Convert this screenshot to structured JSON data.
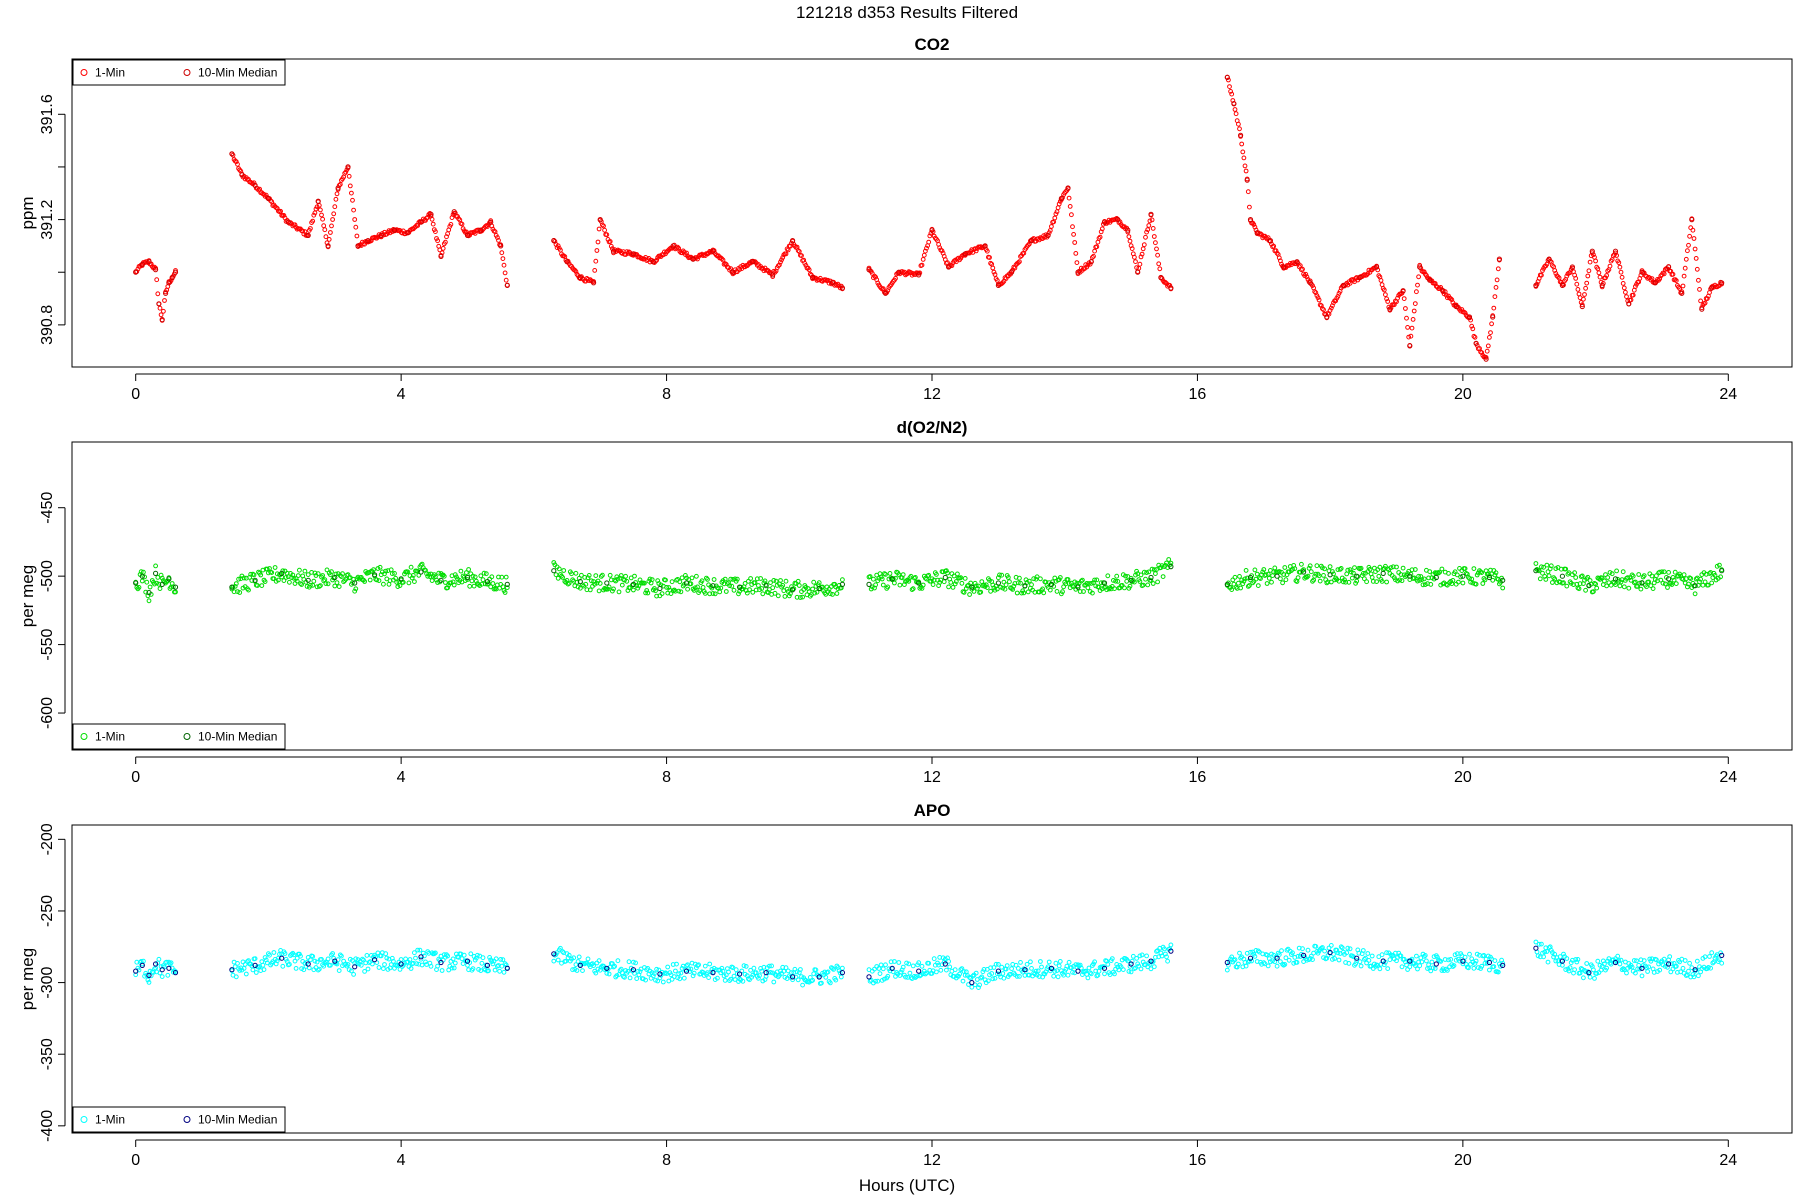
{
  "figure": {
    "title": "121218   d353   Results Filtered",
    "xlabel": "Hours (UTC)"
  },
  "chart_data": [
    {
      "type": "scatter",
      "title": "CO2",
      "xlabel": "",
      "ylabel": "ppm",
      "xlim": [
        -0.96,
        24.96
      ],
      "ylim": [
        390.64,
        391.81
      ],
      "xticks": [
        0,
        4,
        8,
        12,
        16,
        20,
        24
      ],
      "yticks": [
        390.8,
        391.0,
        391.2,
        391.4,
        391.6
      ],
      "ytick_labels": [
        "390.8",
        "",
        "391.2",
        "",
        "391.6"
      ],
      "grid": false,
      "legend_position": "top-left",
      "series": [
        {
          "name": "1-Min",
          "color": "#ff0000",
          "marker": "open-circle"
        },
        {
          "name": "10-Min Median",
          "color": "#cc0000",
          "marker": "open-circle"
        }
      ],
      "segments": [
        {
          "x": [
            0.0,
            0.1,
            0.2,
            0.3,
            0.35,
            0.4,
            0.45,
            0.5,
            0.55,
            0.6
          ],
          "y": [
            391.0,
            391.03,
            391.04,
            391.01,
            390.88,
            390.82,
            390.92,
            390.96,
            390.98,
            391.0
          ]
        },
        {
          "x": [
            1.45,
            1.6,
            1.8,
            2.0,
            2.3,
            2.6,
            2.75,
            2.9,
            3.05,
            3.2,
            3.35,
            3.5,
            3.7,
            3.9,
            4.1,
            4.3,
            4.45,
            4.6,
            4.8,
            5.0,
            5.2,
            5.35,
            5.5,
            5.6
          ],
          "y": [
            391.45,
            391.37,
            391.33,
            391.28,
            391.19,
            391.14,
            391.27,
            391.1,
            391.32,
            391.4,
            391.1,
            391.12,
            391.14,
            391.16,
            391.15,
            391.19,
            391.22,
            391.06,
            391.23,
            391.14,
            391.16,
            391.19,
            391.1,
            390.95
          ]
        },
        {
          "x": [
            6.3,
            6.5,
            6.7,
            6.9,
            7.0,
            7.2,
            7.5,
            7.8,
            8.1,
            8.4,
            8.7,
            9.0,
            9.3,
            9.6,
            9.9,
            10.2,
            10.5,
            10.65
          ],
          "y": [
            391.12,
            391.04,
            390.98,
            390.96,
            391.2,
            391.08,
            391.07,
            391.04,
            391.1,
            391.05,
            391.08,
            391.0,
            391.04,
            390.99,
            391.12,
            390.98,
            390.96,
            390.94
          ]
        },
        {
          "x": [
            11.05,
            11.3,
            11.5,
            11.8,
            12.0,
            12.25,
            12.5,
            12.8,
            13.0,
            13.2,
            13.5,
            13.75,
            13.95,
            14.05,
            14.2,
            14.4,
            14.6,
            14.8,
            14.95,
            15.1,
            15.3,
            15.45,
            15.6
          ],
          "y": [
            391.01,
            390.92,
            391.0,
            390.99,
            391.16,
            391.02,
            391.07,
            391.1,
            390.95,
            391.0,
            391.12,
            391.14,
            391.28,
            391.32,
            391.0,
            391.04,
            391.19,
            391.2,
            391.16,
            391.0,
            391.22,
            390.98,
            390.94
          ]
        },
        {
          "x": [
            16.45,
            16.55,
            16.65,
            16.75,
            16.8,
            16.9,
            17.1,
            17.3,
            17.5,
            17.7,
            17.95,
            18.2,
            18.45,
            18.7,
            18.9,
            19.1,
            19.2,
            19.35,
            19.5,
            19.7,
            19.9,
            20.1,
            20.2,
            20.35,
            20.45,
            20.55
          ],
          "y": [
            391.74,
            391.64,
            391.52,
            391.35,
            391.2,
            391.15,
            391.12,
            391.02,
            391.04,
            390.96,
            390.83,
            390.95,
            390.98,
            391.02,
            390.86,
            390.93,
            390.72,
            391.02,
            390.97,
            390.93,
            390.87,
            390.83,
            390.73,
            390.67,
            390.83,
            391.05
          ]
        },
        {
          "x": [
            21.1,
            21.3,
            21.5,
            21.65,
            21.8,
            21.95,
            22.1,
            22.3,
            22.5,
            22.7,
            22.9,
            23.1,
            23.3,
            23.45,
            23.6,
            23.75,
            23.9
          ],
          "y": [
            390.95,
            391.05,
            390.95,
            391.02,
            390.87,
            391.08,
            390.95,
            391.08,
            390.88,
            391.0,
            390.96,
            391.02,
            390.92,
            391.2,
            390.86,
            390.94,
            390.96
          ]
        }
      ]
    },
    {
      "type": "scatter",
      "title": "d(O2/N2)",
      "xlabel": "",
      "ylabel": "per meg",
      "xlim": [
        -0.96,
        24.96
      ],
      "ylim": [
        -627,
        -402
      ],
      "xticks": [
        0,
        4,
        8,
        12,
        16,
        20,
        24
      ],
      "yticks": [
        -600,
        -550,
        -500,
        -450
      ],
      "ytick_labels": [
        "-600",
        "-550",
        "-500",
        "-450"
      ],
      "grid": false,
      "legend_position": "bottom-left",
      "series": [
        {
          "name": "1-Min",
          "color": "#00dd00",
          "marker": "open-circle"
        },
        {
          "name": "10-Min Median",
          "color": "#006400",
          "marker": "open-circle"
        }
      ],
      "segments": [
        {
          "x": [
            0.0,
            0.1,
            0.2,
            0.3,
            0.4,
            0.5,
            0.6
          ],
          "y": [
            -505,
            -500,
            -512,
            -498,
            -506,
            -502,
            -508
          ]
        },
        {
          "x": [
            1.45,
            1.8,
            2.2,
            2.6,
            3.0,
            3.3,
            3.6,
            4.0,
            4.3,
            4.6,
            5.0,
            5.3,
            5.6
          ],
          "y": [
            -508,
            -503,
            -498,
            -503,
            -501,
            -505,
            -499,
            -502,
            -497,
            -503,
            -501,
            -504,
            -506
          ]
        },
        {
          "x": [
            6.3,
            6.7,
            7.1,
            7.5,
            7.9,
            8.3,
            8.7,
            9.1,
            9.5,
            9.9,
            10.3,
            10.65
          ],
          "y": [
            -496,
            -504,
            -505,
            -506,
            -509,
            -505,
            -507,
            -508,
            -507,
            -510,
            -509,
            -506
          ]
        },
        {
          "x": [
            11.05,
            11.4,
            11.8,
            12.2,
            12.6,
            13.0,
            13.4,
            13.8,
            14.2,
            14.6,
            15.0,
            15.3,
            15.6
          ],
          "y": [
            -506,
            -502,
            -505,
            -501,
            -508,
            -505,
            -507,
            -506,
            -508,
            -505,
            -503,
            -501,
            -493
          ]
        },
        {
          "x": [
            16.45,
            16.8,
            17.2,
            17.6,
            18.0,
            18.4,
            18.8,
            19.2,
            19.6,
            20.0,
            20.4,
            20.6
          ],
          "y": [
            -506,
            -501,
            -500,
            -497,
            -499,
            -500,
            -498,
            -500,
            -501,
            -500,
            -501,
            -503
          ]
        },
        {
          "x": [
            21.1,
            21.5,
            21.9,
            22.3,
            22.7,
            23.1,
            23.5,
            23.9
          ],
          "y": [
            -496,
            -500,
            -507,
            -502,
            -505,
            -502,
            -507,
            -496
          ]
        }
      ]
    },
    {
      "type": "scatter",
      "title": "APO",
      "xlabel": "Hours (UTC)",
      "ylabel": "per meg",
      "xlim": [
        -0.96,
        24.96
      ],
      "ylim": [
        -405,
        -190
      ],
      "xticks": [
        0,
        4,
        8,
        12,
        16,
        20,
        24
      ],
      "yticks": [
        -400,
        -350,
        -300,
        -250,
        -200
      ],
      "ytick_labels": [
        "-400",
        "-350",
        "-300",
        "-250",
        "-200"
      ],
      "grid": false,
      "legend_position": "bottom-left",
      "series": [
        {
          "name": "1-Min",
          "color": "#00ffff",
          "marker": "open-circle"
        },
        {
          "name": "10-Min Median",
          "color": "#000080",
          "marker": "open-circle"
        }
      ],
      "segments": [
        {
          "x": [
            0.0,
            0.1,
            0.2,
            0.3,
            0.4,
            0.5,
            0.6
          ],
          "y": [
            -292,
            -288,
            -295,
            -287,
            -291,
            -290,
            -293
          ]
        },
        {
          "x": [
            1.45,
            1.8,
            2.2,
            2.6,
            3.0,
            3.3,
            3.6,
            4.0,
            4.3,
            4.6,
            5.0,
            5.3,
            5.6
          ],
          "y": [
            -291,
            -288,
            -283,
            -287,
            -285,
            -289,
            -284,
            -287,
            -282,
            -286,
            -285,
            -288,
            -290
          ]
        },
        {
          "x": [
            6.3,
            6.7,
            7.1,
            7.5,
            7.9,
            8.3,
            8.7,
            9.1,
            9.5,
            9.9,
            10.3,
            10.65
          ],
          "y": [
            -280,
            -288,
            -290,
            -291,
            -294,
            -292,
            -293,
            -294,
            -293,
            -296,
            -296,
            -293
          ]
        },
        {
          "x": [
            11.05,
            11.4,
            11.8,
            12.2,
            12.6,
            13.0,
            13.4,
            13.8,
            14.2,
            14.6,
            15.0,
            15.3,
            15.6
          ],
          "y": [
            -296,
            -290,
            -292,
            -287,
            -300,
            -292,
            -291,
            -290,
            -292,
            -290,
            -287,
            -285,
            -278
          ]
        },
        {
          "x": [
            16.45,
            16.8,
            17.2,
            17.6,
            18.0,
            18.4,
            18.8,
            19.2,
            19.6,
            20.0,
            20.4,
            20.6
          ],
          "y": [
            -286,
            -283,
            -283,
            -281,
            -279,
            -283,
            -285,
            -285,
            -287,
            -285,
            -286,
            -288
          ]
        },
        {
          "x": [
            21.1,
            21.5,
            21.9,
            22.3,
            22.7,
            23.1,
            23.5,
            23.9
          ],
          "y": [
            -276,
            -285,
            -293,
            -286,
            -290,
            -287,
            -291,
            -281
          ]
        }
      ]
    }
  ]
}
